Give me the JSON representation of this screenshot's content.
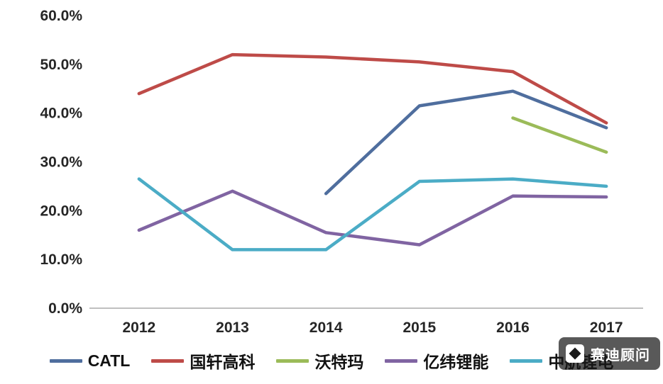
{
  "chart_data": {
    "type": "line",
    "x": [
      "2012",
      "2013",
      "2014",
      "2015",
      "2016",
      "2017"
    ],
    "series": [
      {
        "name": "CATL",
        "color": "#4F6E9E",
        "values": [
          null,
          null,
          23.5,
          41.5,
          44.5,
          37.0
        ]
      },
      {
        "name": "国轩高科",
        "color": "#BE4B48",
        "values": [
          44.0,
          52.0,
          51.5,
          50.5,
          48.5,
          38.0
        ]
      },
      {
        "name": "沃特玛",
        "color": "#9BBB59",
        "values": [
          null,
          null,
          null,
          null,
          39.0,
          32.0
        ]
      },
      {
        "name": "亿纬锂能",
        "color": "#8064A2",
        "values": [
          16.0,
          24.0,
          15.5,
          13.0,
          23.0,
          22.8
        ]
      },
      {
        "name": "中航锂电",
        "color": "#4BACC6",
        "values": [
          26.5,
          12.0,
          12.0,
          26.0,
          26.5,
          25.0
        ]
      }
    ],
    "title": "",
    "xlabel": "",
    "ylabel": "",
    "ylim": [
      0,
      60
    ],
    "ytick_step": 10,
    "ytick_labels": [
      "0.0%",
      "10.0%",
      "20.0%",
      "30.0%",
      "40.0%",
      "50.0%",
      "60.0%"
    ],
    "grid": false,
    "legend_position": "bottom"
  },
  "watermark": {
    "text": "赛迪顾问",
    "icon": "ccid-logo-icon"
  }
}
